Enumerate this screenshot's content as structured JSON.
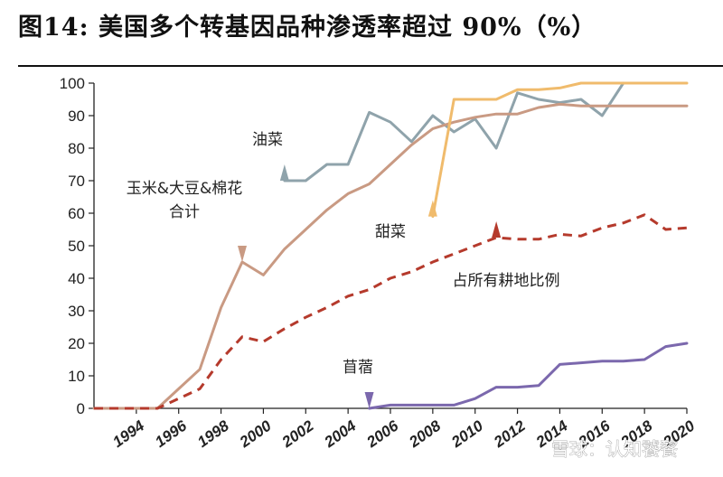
{
  "figure": {
    "title": "图14:  美国多个转基因品种渗透率超过 90%（%）",
    "watermark": "雪球：认知饕餮"
  },
  "chart_data": {
    "type": "line",
    "title": "图14:  美国多个转基因品种渗透率超过 90%（%）",
    "xlabel": "",
    "ylabel": "",
    "xlim": [
      1992,
      2020
    ],
    "ylim": [
      0,
      100
    ],
    "yticks": [
      0,
      10,
      20,
      30,
      40,
      50,
      60,
      70,
      80,
      90,
      100
    ],
    "xticks": [
      1994,
      1996,
      1998,
      2000,
      2002,
      2004,
      2006,
      2008,
      2010,
      2012,
      2014,
      2016,
      2018,
      2020
    ],
    "grid": false,
    "legend": "none",
    "series": [
      {
        "name": "油菜",
        "color": "#8fa3ab",
        "style": "solid",
        "x": [
          2001,
          2002,
          2003,
          2004,
          2005,
          2006,
          2007,
          2008,
          2009,
          2010,
          2011,
          2012,
          2013,
          2014,
          2015,
          2016,
          2017
        ],
        "y": [
          70,
          70,
          75,
          75,
          91,
          88,
          82,
          90,
          85,
          89,
          80,
          97,
          95,
          94,
          95,
          90,
          100
        ]
      },
      {
        "name": "玉米&大豆&棉花合计",
        "color": "#c99a83",
        "style": "solid",
        "x": [
          1992,
          1993,
          1994,
          1995,
          1996,
          1997,
          1998,
          1999,
          2000,
          2001,
          2002,
          2003,
          2004,
          2005,
          2006,
          2007,
          2008,
          2009,
          2010,
          2011,
          2012,
          2013,
          2014,
          2015,
          2016,
          2017,
          2018,
          2019,
          2020
        ],
        "y": [
          0,
          0,
          0,
          0,
          6,
          12,
          31,
          45,
          41,
          49,
          55,
          61,
          66,
          69,
          75,
          81,
          86,
          88,
          89.5,
          90.5,
          90.5,
          92.5,
          93.5,
          93,
          93,
          93,
          93,
          93,
          93
        ]
      },
      {
        "name": "甜菜",
        "color": "#f0bb6c",
        "style": "solid",
        "x": [
          2008,
          2009,
          2010,
          2011,
          2012,
          2013,
          2014,
          2015,
          2016,
          2017,
          2018,
          2019,
          2020
        ],
        "y": [
          59,
          95,
          95,
          95,
          98,
          98,
          98.5,
          100,
          100,
          100,
          100,
          100,
          100
        ]
      },
      {
        "name": "占所有耕地比例",
        "color": "#b53a2c",
        "style": "dashed",
        "x": [
          1992,
          1993,
          1994,
          1995,
          1996,
          1997,
          1998,
          1999,
          2000,
          2001,
          2002,
          2003,
          2004,
          2005,
          2006,
          2007,
          2008,
          2009,
          2010,
          2011,
          2012,
          2013,
          2014,
          2015,
          2016,
          2017,
          2018,
          2019,
          2020
        ],
        "y": [
          0,
          0,
          0,
          0,
          3,
          6,
          15,
          22,
          20.5,
          24.5,
          28,
          31,
          34.5,
          36.5,
          40,
          42,
          45,
          47.5,
          50,
          52.5,
          52,
          52,
          53.5,
          53,
          55.5,
          57,
          59.5,
          55,
          55.5
        ]
      },
      {
        "name": "苜蓿",
        "color": "#7b68ad",
        "style": "solid",
        "x": [
          2005,
          2006,
          2007,
          2008,
          2009,
          2010,
          2011,
          2012,
          2013,
          2014,
          2015,
          2016,
          2017,
          2018,
          2019,
          2020
        ],
        "y": [
          0,
          1,
          1,
          1,
          1,
          3,
          6.5,
          6.5,
          7,
          13.5,
          14,
          14.5,
          14.5,
          15,
          19,
          20
        ]
      }
    ],
    "annotations": [
      {
        "lines": [
          "油菜"
        ],
        "series": 0,
        "pointer_x": 2001,
        "pointer_y": 70,
        "pointer_dir": "up",
        "pointer_color": "#8fa3ab"
      },
      {
        "lines": [
          "玉米&大豆&棉花",
          "合计"
        ],
        "series": 1,
        "pointer_x": 1999,
        "pointer_y": 45,
        "pointer_dir": "down",
        "pointer_color": "#c99a83"
      },
      {
        "lines": [
          "甜菜"
        ],
        "series": 2,
        "pointer_x": 2008,
        "pointer_y": 59,
        "pointer_dir": "up",
        "pointer_color": "#f0bb6c"
      },
      {
        "lines": [
          "占所有耕地比例"
        ],
        "series": 3,
        "pointer_x": 2011,
        "pointer_y": 52.5,
        "pointer_dir": "up",
        "pointer_color": "#b53a2c"
      },
      {
        "lines": [
          "苜蓿"
        ],
        "series": 4,
        "pointer_x": 2005,
        "pointer_y": 0,
        "pointer_dir": "down",
        "pointer_color": "#7b68ad"
      }
    ]
  }
}
